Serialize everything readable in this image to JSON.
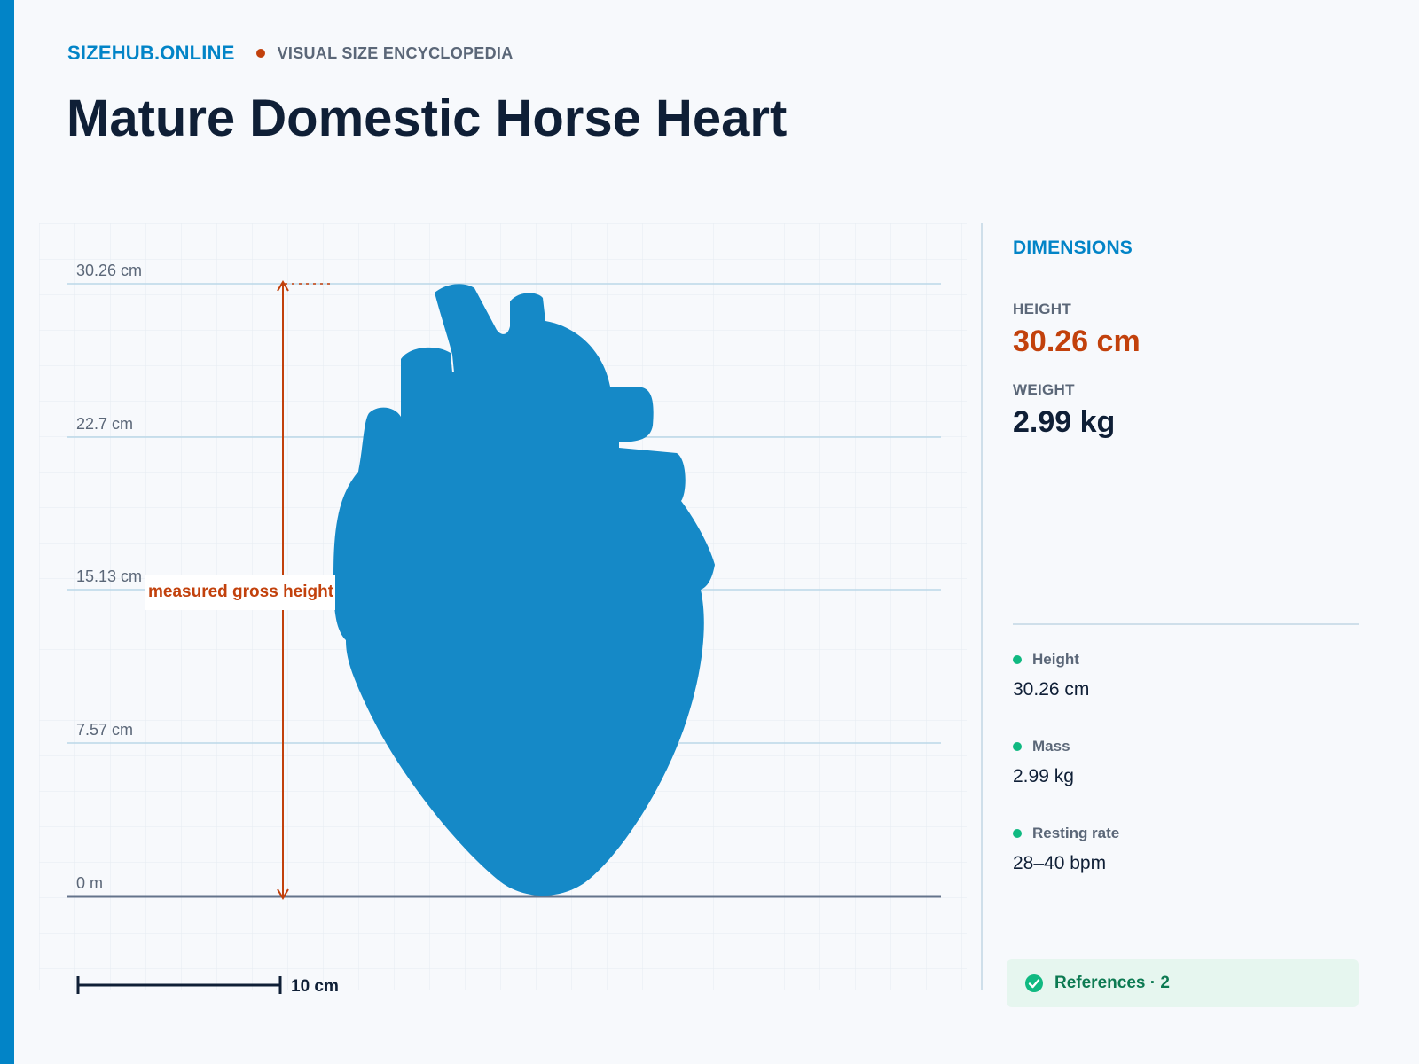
{
  "header": {
    "brand": "SIZEHUB.ONLINE",
    "tagline": "VISUAL SIZE ENCYCLOPEDIA"
  },
  "title": "Mature Domestic Horse Heart",
  "diagram": {
    "subject_icon": "heart-silhouette",
    "axis_ticks": [
      "30.26 cm",
      "22.7 cm",
      "15.13 cm",
      "7.57 cm",
      "0 m"
    ],
    "measure_label": "measured gross height",
    "scale_bar_label": "10 cm",
    "colors": {
      "subject": "#1589c7",
      "measure": "#c2410c",
      "accent": "#0284c7"
    }
  },
  "dimensions": {
    "heading": "DIMENSIONS",
    "height_label": "HEIGHT",
    "height_value": "30.26 cm",
    "weight_label": "WEIGHT",
    "weight_value": "2.99 kg"
  },
  "facts": [
    {
      "label": "Height",
      "value": "30.26 cm"
    },
    {
      "label": "Mass",
      "value": "2.99 kg"
    },
    {
      "label": "Resting rate",
      "value": "28–40 bpm"
    }
  ],
  "references": {
    "label": "References · 2",
    "icon": "check-circle-icon"
  }
}
